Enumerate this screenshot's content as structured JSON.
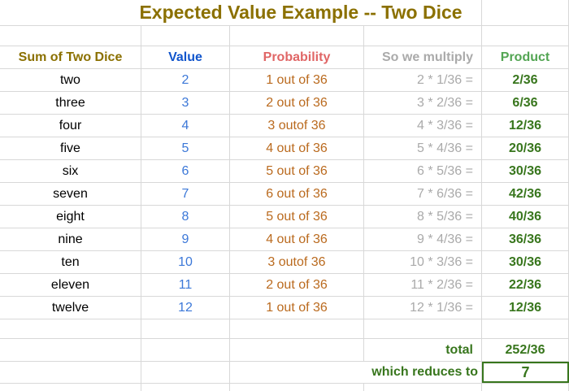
{
  "title": "Expected Value Example -- Two Dice",
  "table": {
    "headers": {
      "sum": "Sum of Two Dice",
      "value": "Value",
      "probability": "Probability",
      "multiply": "So we multiply",
      "product": "Product"
    },
    "rows": [
      {
        "sum": "two",
        "value": "2",
        "probability": "1 out of 36",
        "multiply": "2 * 1/36 =",
        "product": "2/36"
      },
      {
        "sum": "three",
        "value": "3",
        "probability": "2 out of 36",
        "multiply": "3 * 2/36 =",
        "product": "6/36"
      },
      {
        "sum": "four",
        "value": "4",
        "probability": "3 outof 36",
        "multiply": "4 * 3/36 =",
        "product": "12/36"
      },
      {
        "sum": "five",
        "value": "5",
        "probability": "4 out of 36",
        "multiply": "5 * 4/36 =",
        "product": "20/36"
      },
      {
        "sum": "six",
        "value": "6",
        "probability": "5 out of 36",
        "multiply": "6 * 5/36 =",
        "product": "30/36"
      },
      {
        "sum": "seven",
        "value": "7",
        "probability": "6 out of 36",
        "multiply": "7 * 6/36 =",
        "product": "42/36"
      },
      {
        "sum": "eight",
        "value": "8",
        "probability": "5 out of 36",
        "multiply": "8 * 5/36 =",
        "product": "40/36"
      },
      {
        "sum": "nine",
        "value": "9",
        "probability": "4 out of 36",
        "multiply": "9 * 4/36 =",
        "product": "36/36"
      },
      {
        "sum": "ten",
        "value": "10",
        "probability": "3 outof 36",
        "multiply": "10 * 3/36 =",
        "product": "30/36"
      },
      {
        "sum": "eleven",
        "value": "11",
        "probability": "2 out of 36",
        "multiply": "11 * 2/36 =",
        "product": "22/36"
      },
      {
        "sum": "twelve",
        "value": "12",
        "probability": "1 out of 36",
        "multiply": "12 * 1/36 =",
        "product": "12/36"
      }
    ],
    "total_label": "total",
    "total_value": "252/36",
    "reduces_label": "which reduces to",
    "reduces_value": "7"
  },
  "colors": {
    "title": "#8B7000",
    "value_header": "#1155CC",
    "value_text": "#3C78D8",
    "probability_header": "#E06666",
    "probability_text": "#BA6A1E",
    "multiply_gray": "#AAAAAA",
    "product_header": "#53A553",
    "dark_green": "#38761D",
    "gridline": "#D8D8D8",
    "bg": "#FFFFFF"
  }
}
